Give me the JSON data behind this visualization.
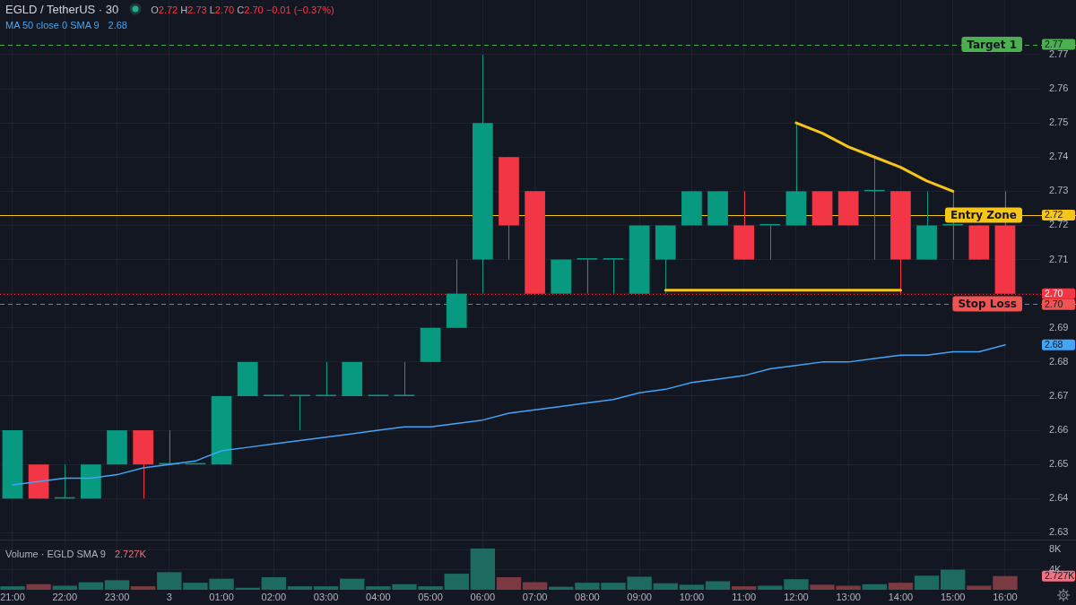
{
  "chart_data": [
    {
      "type": "candlestick",
      "title": "EGLD / TetherUS · 30",
      "subtitle": "O2.72 H2.73 L2.70 C2.70 −0.01 (−0.37%)",
      "categories": [
        "21:00",
        null,
        "22:00",
        null,
        "23:00",
        null,
        "3",
        null,
        "01:00",
        null,
        "02:00",
        null,
        "03:00",
        null,
        "04:00",
        null,
        "05:00",
        null,
        "06:00",
        null,
        "07:00",
        null,
        "08:00",
        null,
        "09:00",
        null,
        "10:00",
        null,
        "11:00",
        null,
        "12:00",
        null,
        "13:00",
        null,
        "14:00",
        null,
        "15:00",
        null,
        "16:00"
      ],
      "ohlc": [
        [
          2.64,
          2.66,
          2.64,
          2.66
        ],
        [
          2.65,
          2.65,
          2.64,
          2.64
        ],
        [
          2.64,
          2.65,
          2.64,
          2.64
        ],
        [
          2.64,
          2.65,
          2.64,
          2.65
        ],
        [
          2.65,
          2.66,
          2.65,
          2.66
        ],
        [
          2.66,
          2.66,
          2.64,
          2.65
        ],
        [
          2.65,
          2.66,
          2.65,
          2.65
        ],
        [
          2.65,
          2.65,
          2.65,
          2.65
        ],
        [
          2.65,
          2.67,
          2.65,
          2.67
        ],
        [
          2.67,
          2.68,
          2.67,
          2.68
        ],
        [
          2.67,
          2.67,
          2.67,
          2.67
        ],
        [
          2.67,
          2.67,
          2.66,
          2.67
        ],
        [
          2.67,
          2.68,
          2.67,
          2.67
        ],
        [
          2.67,
          2.68,
          2.67,
          2.68
        ],
        [
          2.67,
          2.67,
          2.67,
          2.67
        ],
        [
          2.67,
          2.68,
          2.67,
          2.67
        ],
        [
          2.68,
          2.69,
          2.68,
          2.69
        ],
        [
          2.69,
          2.71,
          2.69,
          2.7
        ],
        [
          2.71,
          2.77,
          2.7,
          2.75
        ],
        [
          2.74,
          2.74,
          2.71,
          2.72
        ],
        [
          2.73,
          2.73,
          2.7,
          2.7
        ],
        [
          2.7,
          2.71,
          2.7,
          2.71
        ],
        [
          2.71,
          2.71,
          2.7,
          2.71
        ],
        [
          2.71,
          2.71,
          2.7,
          2.71
        ],
        [
          2.7,
          2.72,
          2.7,
          2.72
        ],
        [
          2.71,
          2.72,
          2.7,
          2.72
        ],
        [
          2.72,
          2.73,
          2.72,
          2.73
        ],
        [
          2.72,
          2.73,
          2.72,
          2.73
        ],
        [
          2.72,
          2.73,
          2.71,
          2.71
        ],
        [
          2.72,
          2.72,
          2.71,
          2.72
        ],
        [
          2.72,
          2.75,
          2.72,
          2.73
        ],
        [
          2.73,
          2.73,
          2.72,
          2.72
        ],
        [
          2.73,
          2.73,
          2.72,
          2.72
        ],
        [
          2.73,
          2.74,
          2.71,
          2.73
        ],
        [
          2.73,
          2.73,
          2.7,
          2.71
        ],
        [
          2.71,
          2.73,
          2.71,
          2.72
        ],
        [
          2.72,
          2.73,
          2.71,
          2.72
        ],
        [
          2.72,
          2.72,
          2.71,
          2.71
        ],
        [
          2.72,
          2.73,
          2.7,
          2.7
        ]
      ],
      "colors": [
        "#089981",
        "#f23645",
        "#089981",
        "#089981",
        "#089981",
        "#f23645",
        "#089981",
        "#089981",
        "#089981",
        "#089981",
        "#089981",
        "#089981",
        "#089981",
        "#089981",
        "#089981",
        "#089981",
        "#089981",
        "#089981",
        "#089981",
        "#f23645",
        "#f23645",
        "#089981",
        "#089981",
        "#089981",
        "#089981",
        "#089981",
        "#089981",
        "#089981",
        "#f23645",
        "#089981",
        "#089981",
        "#f23645",
        "#f23645",
        "#089981",
        "#f23645",
        "#089981",
        "#089981",
        "#f23645",
        "#f23645"
      ],
      "series": [
        {
          "type": "line",
          "name": "MA 50 close 0 SMA 9",
          "color": "#42a5f5",
          "values": [
            2.644,
            2.645,
            2.646,
            2.646,
            2.647,
            2.649,
            2.65,
            2.651,
            2.654,
            2.655,
            2.656,
            2.657,
            2.658,
            2.659,
            2.66,
            2.661,
            2.661,
            2.662,
            2.663,
            2.665,
            2.666,
            2.667,
            2.668,
            2.669,
            2.671,
            2.672,
            2.674,
            2.675,
            2.676,
            2.678,
            2.679,
            2.68,
            2.68,
            2.681,
            2.682,
            2.682,
            2.683,
            2.683,
            2.685
          ]
        },
        {
          "type": "line",
          "color": "#f5c518",
          "values": [
            null,
            null,
            null,
            null,
            null,
            null,
            null,
            null,
            null,
            null,
            null,
            null,
            null,
            null,
            null,
            null,
            null,
            null,
            null,
            null,
            null,
            null,
            null,
            null,
            null,
            null,
            null,
            null,
            null,
            null,
            2.75,
            2.747,
            2.743,
            2.74,
            2.737,
            2.733,
            2.73,
            null,
            null
          ]
        },
        {
          "type": "line",
          "color": "#f5c518",
          "values": [
            null,
            null,
            null,
            null,
            null,
            null,
            null,
            null,
            null,
            null,
            null,
            null,
            null,
            null,
            null,
            null,
            null,
            null,
            null,
            null,
            null,
            null,
            null,
            null,
            null,
            2.701,
            2.701,
            2.701,
            2.701,
            2.701,
            2.701,
            2.701,
            2.701,
            2.701,
            2.701,
            null,
            null,
            null,
            null
          ]
        }
      ],
      "ref_lines": [
        {
          "axis": "y",
          "value": 2.773,
          "label": "Target 1",
          "color": "#4caf50",
          "line_style": "dashed"
        },
        {
          "axis": "y",
          "value": 2.723,
          "label": "Entry Zone",
          "color": "#f5c518",
          "line_style": "solid"
        },
        {
          "axis": "y",
          "value": 2.7,
          "color": "#f23645",
          "line_style": "dotted"
        },
        {
          "axis": "y",
          "value": 2.697,
          "label": "Stop Loss",
          "color": "#f05350",
          "line_style": "dashed"
        }
      ],
      "annotations": [
        "2.68",
        "2.68",
        {
          "text": "2.77",
          "y": 2.773
        },
        {
          "text": "2.72",
          "y": 2.723
        },
        {
          "text": "2.70",
          "y": 2.7
        },
        {
          "text": "2.70",
          "y": 2.697
        }
      ],
      "ylim": [
        2.628,
        2.786
      ],
      "yticks": [
        2.63,
        2.64,
        2.65,
        2.66,
        2.67,
        2.68,
        2.69,
        {
          "value": 2.7,
          "label": null
        },
        2.71,
        2.72,
        2.73,
        2.74,
        2.75,
        2.76,
        2.77
      ],
      "grid": true,
      "legend": "top left"
    },
    {
      "type": "bar",
      "title": "Volume · EGLD SMA 9",
      "categories": [
        null,
        null,
        null,
        null,
        null,
        null,
        null,
        null,
        null,
        null,
        null,
        null,
        null,
        null,
        null,
        null,
        null,
        null,
        null,
        null,
        null,
        null,
        null,
        null,
        null,
        null,
        null,
        null,
        null,
        null,
        null,
        null,
        null,
        null,
        null,
        null,
        null,
        null,
        null
      ],
      "values": [
        0.7,
        1.1,
        0.8,
        1.5,
        1.9,
        0.7,
        3.5,
        1.4,
        2.2,
        0.4,
        2.5,
        0.7,
        0.7,
        2.2,
        0.7,
        1.1,
        0.7,
        3.2,
        8.2,
        2.5,
        1.5,
        0.6,
        1.4,
        1.4,
        2.6,
        1.3,
        1.0,
        1.7,
        0.7,
        0.8,
        2.1,
        1.0,
        0.8,
        1.1,
        1.4,
        2.8,
        4.0,
        0.8,
        2.727
      ],
      "colors": [
        "#1d6a60",
        "#7b3a41",
        "#1d6a60",
        "#1d6a60",
        "#1d6a60",
        "#7b3a41",
        "#1d6a60",
        "#1d6a60",
        "#1d6a60",
        "#1d6a60",
        "#1d6a60",
        "#1d6a60",
        "#1d6a60",
        "#1d6a60",
        "#1d6a60",
        "#1d6a60",
        "#1d6a60",
        "#1d6a60",
        "#1d6a60",
        "#7b3a41",
        "#7b3a41",
        "#1d6a60",
        "#1d6a60",
        "#1d6a60",
        "#1d6a60",
        "#1d6a60",
        "#1d6a60",
        "#1d6a60",
        "#7b3a41",
        "#1d6a60",
        "#1d6a60",
        "#7b3a41",
        "#7b3a41",
        "#1d6a60",
        "#7b3a41",
        "#1d6a60",
        "#1d6a60",
        "#7b3a41",
        "#7b3a41"
      ],
      "annotations": [
        "2.727K",
        {
          "text": "2.727K",
          "y": 2.727
        }
      ],
      "ylim": [
        0,
        9.8
      ],
      "yticks": [
        {
          "value": 4,
          "label": "4K"
        },
        {
          "value": 8,
          "label": "8K"
        }
      ],
      "grid": true
    }
  ]
}
